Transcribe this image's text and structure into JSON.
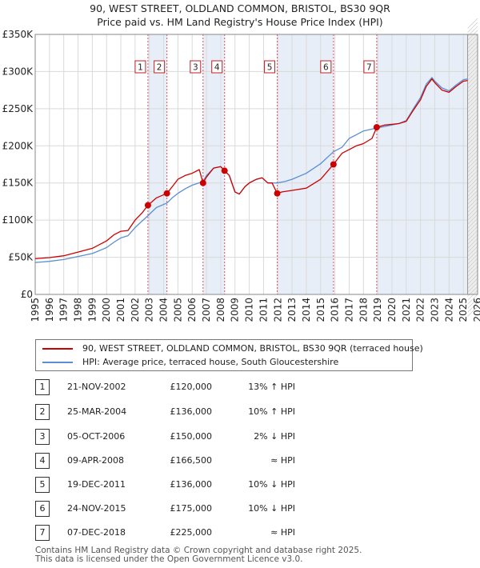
{
  "header": {
    "title_line1": "90, WEST STREET, OLDLAND COMMON, BRISTOL, BS30 9QR",
    "title_line2": "Price paid vs. HM Land Registry's House Price Index (HPI)"
  },
  "colors": {
    "price_line": "#cc0000",
    "hpi_line": "#5b8fd0",
    "band": "#e8eef8",
    "marker_line": "#e05060",
    "grid": "#d9d9d9"
  },
  "chart_data": {
    "type": "line",
    "title": "90, WEST STREET, OLDLAND COMMON, BRISTOL, BS30 9QR",
    "subtitle": "Price paid vs. HM Land Registry's House Price Index (HPI)",
    "xlabel": "",
    "ylabel": "",
    "xlim": [
      1995,
      2026
    ],
    "ylim": [
      0,
      350000
    ],
    "y_ticks": [
      0,
      50000,
      100000,
      150000,
      200000,
      250000,
      300000,
      350000
    ],
    "y_tick_labels": [
      "£0",
      "£50K",
      "£100K",
      "£150K",
      "£200K",
      "£250K",
      "£300K",
      "£350K"
    ],
    "x_ticks": [
      1995,
      1996,
      1997,
      1998,
      1999,
      2000,
      2001,
      2002,
      2003,
      2004,
      2005,
      2006,
      2007,
      2008,
      2009,
      2010,
      2011,
      2012,
      2013,
      2014,
      2015,
      2016,
      2017,
      2018,
      2019,
      2020,
      2021,
      2022,
      2023,
      2024,
      2025,
      2026
    ],
    "x_tick_labels": [
      "1995",
      "1996",
      "1997",
      "1998",
      "1999",
      "2000",
      "2001",
      "2002",
      "2003",
      "2004",
      "2005",
      "2006",
      "2007",
      "2008",
      "2009",
      "2010",
      "2011",
      "2012",
      "2013",
      "2014",
      "2015",
      "2016",
      "2017",
      "2018",
      "2019",
      "2020",
      "2021",
      "2022",
      "2023",
      "2024",
      "2025",
      "2026"
    ],
    "series": [
      {
        "name": "90, WEST STREET, OLDLAND COMMON, BRISTOL, BS30 9QR (terraced house)",
        "color": "#cc0000",
        "points": [
          [
            1995.0,
            48000
          ],
          [
            1996.0,
            49500
          ],
          [
            1997.0,
            52000
          ],
          [
            1998.0,
            57000
          ],
          [
            1999.0,
            62000
          ],
          [
            2000.0,
            72000
          ],
          [
            2000.5,
            80000
          ],
          [
            2001.0,
            85000
          ],
          [
            2001.5,
            86000
          ],
          [
            2002.0,
            100000
          ],
          [
            2002.5,
            110000
          ],
          [
            2002.9,
            120000
          ],
          [
            2003.5,
            130000
          ],
          [
            2004.23,
            136000
          ],
          [
            2004.6,
            145000
          ],
          [
            2005.0,
            155000
          ],
          [
            2005.5,
            160000
          ],
          [
            2006.0,
            163000
          ],
          [
            2006.5,
            168000
          ],
          [
            2006.76,
            150000
          ],
          [
            2007.0,
            158000
          ],
          [
            2007.5,
            170000
          ],
          [
            2008.0,
            172000
          ],
          [
            2008.27,
            166500
          ],
          [
            2008.6,
            160000
          ],
          [
            2009.0,
            138000
          ],
          [
            2009.3,
            135000
          ],
          [
            2009.7,
            145000
          ],
          [
            2010.0,
            150000
          ],
          [
            2010.5,
            155000
          ],
          [
            2010.9,
            157000
          ],
          [
            2011.3,
            150000
          ],
          [
            2011.6,
            150000
          ],
          [
            2011.96,
            136000
          ],
          [
            2012.3,
            138000
          ],
          [
            2013.0,
            140000
          ],
          [
            2014.0,
            143000
          ],
          [
            2015.0,
            155000
          ],
          [
            2015.9,
            175000
          ],
          [
            2016.5,
            190000
          ],
          [
            2017.0,
            195000
          ],
          [
            2017.5,
            200000
          ],
          [
            2018.0,
            203000
          ],
          [
            2018.6,
            210000
          ],
          [
            2018.93,
            225000
          ],
          [
            2019.5,
            228000
          ],
          [
            2020.0,
            229000
          ],
          [
            2020.5,
            230000
          ],
          [
            2021.0,
            233000
          ],
          [
            2021.5,
            248000
          ],
          [
            2022.0,
            262000
          ],
          [
            2022.4,
            280000
          ],
          [
            2022.8,
            290000
          ],
          [
            2023.0,
            285000
          ],
          [
            2023.5,
            275000
          ],
          [
            2024.0,
            272000
          ],
          [
            2024.5,
            280000
          ],
          [
            2025.0,
            287000
          ],
          [
            2025.3,
            288000
          ]
        ]
      },
      {
        "name": "HPI: Average price, terraced house, South Gloucestershire",
        "color": "#5b8fd0",
        "points": [
          [
            1995.0,
            43000
          ],
          [
            1996.0,
            44500
          ],
          [
            1997.0,
            47000
          ],
          [
            1998.0,
            51000
          ],
          [
            1999.0,
            55000
          ],
          [
            2000.0,
            63000
          ],
          [
            2000.5,
            70000
          ],
          [
            2001.0,
            76000
          ],
          [
            2001.5,
            79000
          ],
          [
            2002.0,
            90000
          ],
          [
            2002.9,
            106000
          ],
          [
            2003.5,
            117000
          ],
          [
            2004.23,
            123000
          ],
          [
            2004.6,
            130000
          ],
          [
            2005.0,
            136000
          ],
          [
            2005.5,
            142000
          ],
          [
            2006.0,
            147000
          ],
          [
            2006.76,
            152000
          ],
          [
            2007.0,
            160000
          ],
          [
            2007.5,
            170000
          ],
          [
            2008.0,
            172000
          ],
          [
            2008.27,
            167000
          ],
          [
            2008.6,
            160000
          ],
          [
            2009.0,
            138000
          ],
          [
            2009.3,
            135000
          ],
          [
            2009.7,
            145000
          ],
          [
            2010.0,
            150000
          ],
          [
            2010.5,
            155000
          ],
          [
            2010.9,
            157000
          ],
          [
            2011.3,
            150000
          ],
          [
            2011.96,
            150000
          ],
          [
            2012.5,
            152000
          ],
          [
            2013.0,
            155000
          ],
          [
            2014.0,
            163000
          ],
          [
            2015.0,
            176000
          ],
          [
            2015.9,
            192000
          ],
          [
            2016.5,
            198000
          ],
          [
            2017.0,
            210000
          ],
          [
            2017.5,
            215000
          ],
          [
            2018.0,
            220000
          ],
          [
            2018.93,
            224000
          ],
          [
            2019.5,
            226000
          ],
          [
            2020.0,
            228000
          ],
          [
            2020.5,
            230000
          ],
          [
            2021.0,
            234000
          ],
          [
            2021.5,
            250000
          ],
          [
            2022.0,
            265000
          ],
          [
            2022.4,
            283000
          ],
          [
            2022.8,
            292000
          ],
          [
            2023.0,
            287000
          ],
          [
            2023.5,
            278000
          ],
          [
            2024.0,
            274000
          ],
          [
            2024.5,
            282000
          ],
          [
            2025.0,
            289000
          ],
          [
            2025.3,
            290000
          ]
        ]
      }
    ],
    "sales": [
      {
        "num": "1",
        "x": 2002.9,
        "price": 120000
      },
      {
        "num": "2",
        "x": 2004.23,
        "price": 136000
      },
      {
        "num": "3",
        "x": 2006.76,
        "price": 150000
      },
      {
        "num": "4",
        "x": 2008.27,
        "price": 166500
      },
      {
        "num": "5",
        "x": 2011.96,
        "price": 136000
      },
      {
        "num": "6",
        "x": 2015.9,
        "price": 175000
      },
      {
        "num": "7",
        "x": 2018.93,
        "price": 225000
      }
    ],
    "bands": [
      [
        2002.9,
        2004.23
      ],
      [
        2006.76,
        2008.27
      ],
      [
        2011.96,
        2015.9
      ],
      [
        2018.93,
        2026
      ]
    ],
    "forecast_start": 2025.3
  },
  "legend": {
    "price_label": "90, WEST STREET, OLDLAND COMMON, BRISTOL, BS30 9QR (terraced house)",
    "hpi_label": "HPI: Average price, terraced house, South Gloucestershire"
  },
  "sales_table": [
    {
      "num": "1",
      "date": "21-NOV-2002",
      "price": "£120,000",
      "hpi": "13% ↑ HPI"
    },
    {
      "num": "2",
      "date": "25-MAR-2004",
      "price": "£136,000",
      "hpi": "10% ↑ HPI"
    },
    {
      "num": "3",
      "date": "05-OCT-2006",
      "price": "£150,000",
      "hpi": "2% ↓ HPI"
    },
    {
      "num": "4",
      "date": "09-APR-2008",
      "price": "£166,500",
      "hpi": "≈ HPI"
    },
    {
      "num": "5",
      "date": "19-DEC-2011",
      "price": "£136,000",
      "hpi": "10% ↓ HPI"
    },
    {
      "num": "6",
      "date": "24-NOV-2015",
      "price": "£175,000",
      "hpi": "10% ↓ HPI"
    },
    {
      "num": "7",
      "date": "07-DEC-2018",
      "price": "£225,000",
      "hpi": "≈ HPI"
    }
  ],
  "footer": {
    "line1": "Contains HM Land Registry data © Crown copyright and database right 2025.",
    "line2": "This data is licensed under the Open Government Licence v3.0."
  }
}
